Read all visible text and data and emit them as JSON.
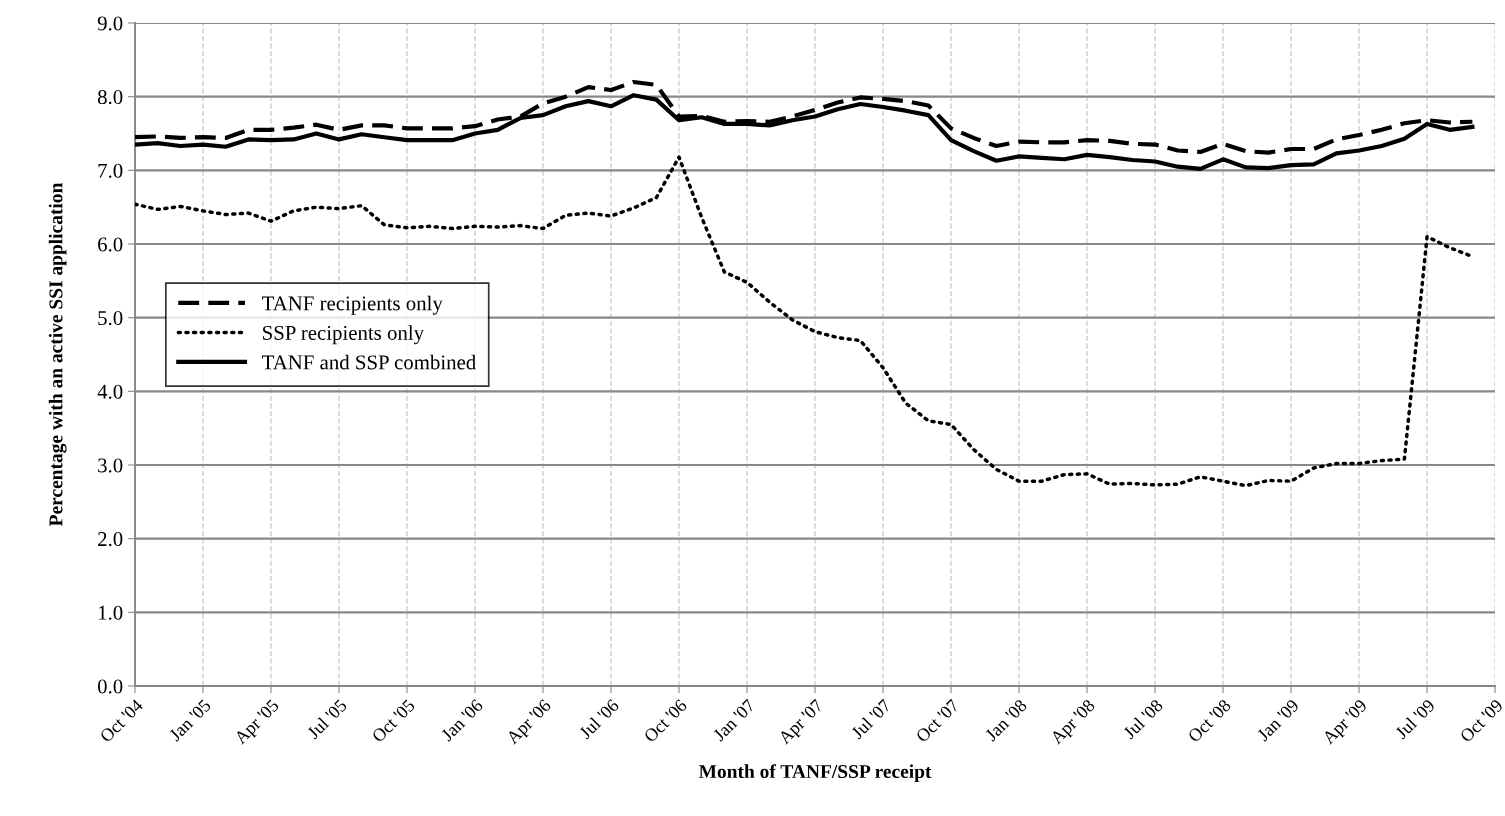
{
  "chart_data": {
    "type": "line",
    "xlabel": "Month of TANF/SSP receipt",
    "ylabel": "Percentage with an active SSI application",
    "categories": [
      "Oct '04",
      null,
      null,
      "Jan '05",
      null,
      null,
      "Apr '05",
      null,
      null,
      "Jul '05",
      null,
      null,
      "Oct '05",
      null,
      null,
      "Jan '06",
      null,
      null,
      "Apr '06",
      null,
      null,
      "Jul '06",
      null,
      null,
      "Oct '06",
      null,
      null,
      "Jan '07",
      null,
      null,
      "Apr '07",
      null,
      null,
      "Jul '07",
      null,
      null,
      "Oct '07",
      null,
      null,
      "Jan '08",
      null,
      null,
      "Apr '08",
      null,
      null,
      "Jul '08",
      null,
      null,
      "Oct '08",
      null,
      null,
      "Jan '09",
      null,
      null,
      "Apr '09",
      null,
      null,
      "Jul '09",
      null,
      null,
      "Oct '09"
    ],
    "series": [
      {
        "name": "TANF recipients only",
        "color": "#000000",
        "line_style": "dashed",
        "values": [
          7.45,
          7.46,
          7.44,
          7.45,
          7.44,
          7.55,
          7.55,
          7.58,
          7.62,
          7.55,
          7.61,
          7.61,
          7.57,
          7.57,
          7.57,
          7.6,
          7.69,
          7.73,
          7.91,
          8.0,
          8.13,
          8.09,
          8.2,
          8.16,
          7.73,
          7.74,
          7.66,
          7.67,
          7.66,
          7.73,
          7.82,
          7.92,
          7.99,
          7.97,
          7.94,
          7.88,
          7.57,
          7.44,
          7.33,
          7.39,
          7.38,
          7.38,
          7.41,
          7.4,
          7.36,
          7.35,
          7.27,
          7.25,
          7.36,
          7.26,
          7.24,
          7.29,
          7.29,
          7.42,
          7.48,
          7.55,
          7.64,
          7.68,
          7.65,
          7.66,
          null
        ]
      },
      {
        "name": "SSP recipients only",
        "color": "#000000",
        "line_style": "dotted",
        "values": [
          6.54,
          6.47,
          6.51,
          6.45,
          6.4,
          6.42,
          6.31,
          6.45,
          6.5,
          6.48,
          6.52,
          6.26,
          6.22,
          6.24,
          6.21,
          6.24,
          6.23,
          6.25,
          6.21,
          6.39,
          6.42,
          6.38,
          6.49,
          6.63,
          7.18,
          6.36,
          5.62,
          5.48,
          5.21,
          4.97,
          4.81,
          4.73,
          4.69,
          4.32,
          3.84,
          3.6,
          3.55,
          3.21,
          2.94,
          2.78,
          2.78,
          2.87,
          2.88,
          2.74,
          2.75,
          2.73,
          2.74,
          2.84,
          2.78,
          2.72,
          2.79,
          2.78,
          2.96,
          3.02,
          3.02,
          3.06,
          3.08,
          6.1,
          5.95,
          5.83,
          null
        ]
      },
      {
        "name": "TANF and SSP combined",
        "color": "#000000",
        "line_style": "solid",
        "values": [
          7.35,
          7.37,
          7.33,
          7.35,
          7.32,
          7.42,
          7.41,
          7.42,
          7.5,
          7.42,
          7.49,
          7.45,
          7.41,
          7.41,
          7.41,
          7.5,
          7.55,
          7.71,
          7.75,
          7.87,
          7.94,
          7.87,
          8.02,
          7.96,
          7.68,
          7.72,
          7.63,
          7.63,
          7.61,
          7.68,
          7.73,
          7.83,
          7.9,
          7.86,
          7.81,
          7.75,
          7.41,
          7.26,
          7.13,
          7.19,
          7.17,
          7.15,
          7.21,
          7.18,
          7.14,
          7.12,
          7.05,
          7.02,
          7.15,
          7.04,
          7.03,
          7.07,
          7.08,
          7.23,
          7.27,
          7.33,
          7.43,
          7.63,
          7.55,
          7.59,
          null
        ]
      }
    ],
    "ylim": [
      0,
      9
    ],
    "yticks": [
      {
        "value": 0,
        "label": "0.0"
      },
      {
        "value": 1,
        "label": "1.0"
      },
      {
        "value": 2,
        "label": "2.0"
      },
      {
        "value": 3,
        "label": "3.0"
      },
      {
        "value": 4,
        "label": "4.0"
      },
      {
        "value": 5,
        "label": "5.0"
      },
      {
        "value": 6,
        "label": "6.0"
      },
      {
        "value": 7,
        "label": "7.0"
      },
      {
        "value": 8,
        "label": "8.0"
      },
      {
        "value": 9,
        "label": "9.0"
      }
    ],
    "grid": true,
    "legend": "left",
    "marker": "none"
  }
}
